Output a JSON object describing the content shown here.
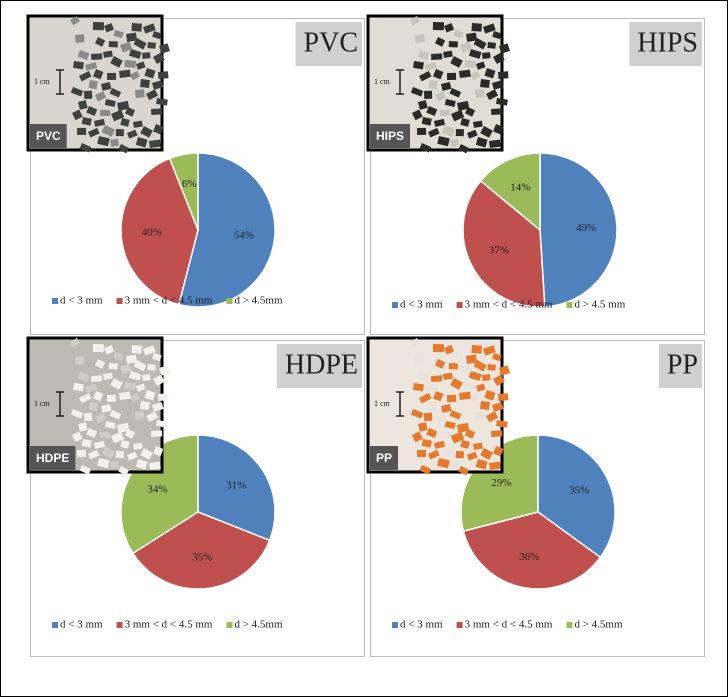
{
  "chart_data": [
    {
      "type": "pie",
      "title": "PVC",
      "photo_label": "PVC",
      "scale_label": "1 cm",
      "categories": [
        "d < 3 mm",
        "3 mm < d < 4.5 mm",
        "d > 4.5mm"
      ],
      "values": [
        54,
        40,
        6
      ],
      "value_labels": [
        "54%",
        "40%",
        "6%"
      ],
      "colors": [
        "#4f81bd",
        "#c0504d",
        "#9bbb59"
      ]
    },
    {
      "type": "pie",
      "title": "HIPS",
      "photo_label": "HIPS",
      "scale_label": "1 cm",
      "categories": [
        "d < 3 mm",
        "3 mm < d < 4.5 mm",
        "d > 4.5 mm"
      ],
      "values": [
        49,
        37,
        14
      ],
      "value_labels": [
        "49%",
        "37%",
        "14%"
      ],
      "colors": [
        "#4f81bd",
        "#c0504d",
        "#9bbb59"
      ]
    },
    {
      "type": "pie",
      "title": "HDPE",
      "photo_label": "HDPE",
      "scale_label": "1 cm",
      "categories": [
        "d < 3 mm",
        "3 mm < d < 4.5 mm",
        "d > 4.5mm"
      ],
      "values": [
        31,
        35,
        34
      ],
      "value_labels": [
        "31%",
        "35%",
        "34%"
      ],
      "colors": [
        "#4f81bd",
        "#c0504d",
        "#9bbb59"
      ]
    },
    {
      "type": "pie",
      "title": "PP",
      "photo_label": "PP",
      "scale_label": "1 cm",
      "categories": [
        "d < 3 mm",
        "3 mm < d < 4.5 mm",
        "d > 4.5mm"
      ],
      "values": [
        35,
        36,
        29
      ],
      "value_labels": [
        "35%",
        "36%",
        "29%"
      ],
      "colors": [
        "#4f81bd",
        "#c0504d",
        "#9bbb59"
      ]
    }
  ]
}
